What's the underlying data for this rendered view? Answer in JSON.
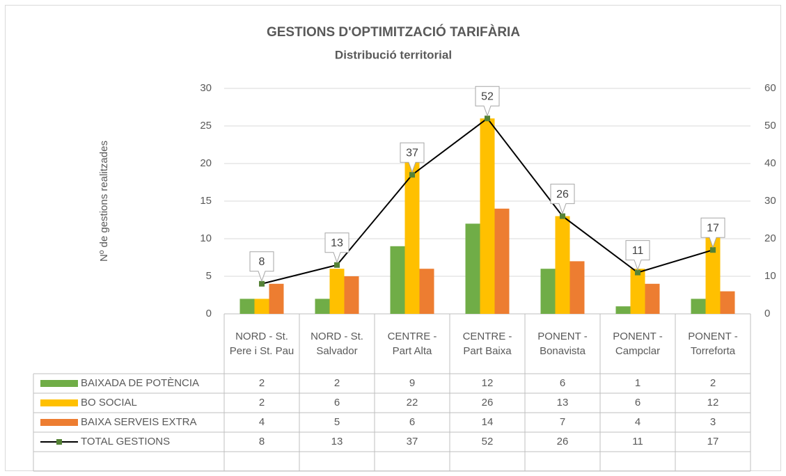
{
  "chart_data": {
    "type": "bar",
    "title": "GESTIONS D'OPTIMITZACIÓ TARIFÀRIA",
    "subtitle": "Distribució territorial",
    "ylabel": "Nº de gestions realitzades",
    "categories": [
      "NORD - St. Pere i St. Pau",
      "NORD - St. Salvador",
      "CENTRE - Part Alta",
      "CENTRE - Part Baixa",
      "PONENT - Bonavista",
      "PONENT - Campclar",
      "PONENT - Torreforta"
    ],
    "series": [
      {
        "name": "BAIXADA DE POTÈNCIA",
        "color": "#70ad47",
        "values": [
          2,
          2,
          9,
          12,
          6,
          1,
          2
        ]
      },
      {
        "name": "BO SOCIAL",
        "color": "#ffc000",
        "values": [
          2,
          6,
          22,
          26,
          13,
          6,
          12
        ]
      },
      {
        "name": "BAIXA SERVEIS EXTRA",
        "color": "#ed7d31",
        "values": [
          4,
          5,
          6,
          14,
          7,
          4,
          3
        ]
      },
      {
        "name": "TOTAL GESTIONS",
        "type": "line",
        "axis": "y2",
        "color": "#000000",
        "marker_color": "#548235",
        "values": [
          8,
          13,
          37,
          52,
          26,
          11,
          17
        ]
      }
    ],
    "ylim": [
      0,
      30
    ],
    "yticks": [
      0,
      5,
      10,
      15,
      20,
      25,
      30
    ],
    "y2lim": [
      0,
      60
    ],
    "y2ticks": [
      0,
      10,
      20,
      30,
      40,
      50,
      60
    ],
    "grid": true
  }
}
